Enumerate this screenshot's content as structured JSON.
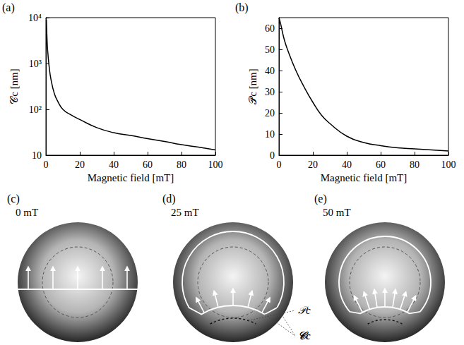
{
  "chart_data": [
    {
      "type": "line",
      "title": "(a)",
      "x_label": "Magnetic field [mT]",
      "y_label": "𝒞c [nm]",
      "color": "#000000",
      "log": "y",
      "grid": false,
      "x": [
        0.3,
        0.5,
        1,
        2,
        3,
        5,
        7,
        10,
        15,
        20,
        30,
        40,
        50,
        60,
        70,
        80,
        90,
        100
      ],
      "values": [
        9000,
        5000,
        2000,
        800,
        450,
        220,
        150,
        100,
        75,
        60,
        40,
        31,
        27,
        23,
        20,
        17,
        15,
        13
      ],
      "xlim": [
        0,
        100
      ],
      "xticks": [
        0,
        20,
        40,
        60,
        80,
        100
      ],
      "ylim": [
        10,
        10000
      ],
      "yticks": [
        10,
        {
          "value": 100,
          "label": "10²"
        },
        {
          "value": 1000,
          "label": "10³"
        },
        {
          "value": 10000,
          "label": "10⁴"
        }
      ]
    },
    {
      "type": "line",
      "title": "(b)",
      "x_label": "Magnetic field [mT]",
      "y_label": "𝒫c [nm]",
      "color": "#000000",
      "grid": false,
      "x": [
        0,
        1,
        3,
        5,
        10,
        15,
        20,
        25,
        30,
        40,
        50,
        60,
        70,
        80,
        90,
        100
      ],
      "values": [
        65,
        62,
        55,
        50,
        40,
        32,
        25,
        19,
        15,
        9,
        6,
        4.5,
        3.5,
        3,
        2.5,
        2
      ],
      "xlim": [
        0,
        100
      ],
      "xticks": [
        0,
        20,
        40,
        60,
        80,
        100
      ],
      "ylim": [
        0,
        65
      ],
      "yticks": [
        0,
        10,
        20,
        30,
        40,
        50,
        60
      ]
    }
  ],
  "diagrams": [
    {
      "label": "(c)",
      "field": "0 mT"
    },
    {
      "label": "(d)",
      "field": "25 mT",
      "annotations": [
        "𝒫c",
        "𝒞c"
      ]
    },
    {
      "label": "(e)",
      "field": "50 mT"
    }
  ]
}
